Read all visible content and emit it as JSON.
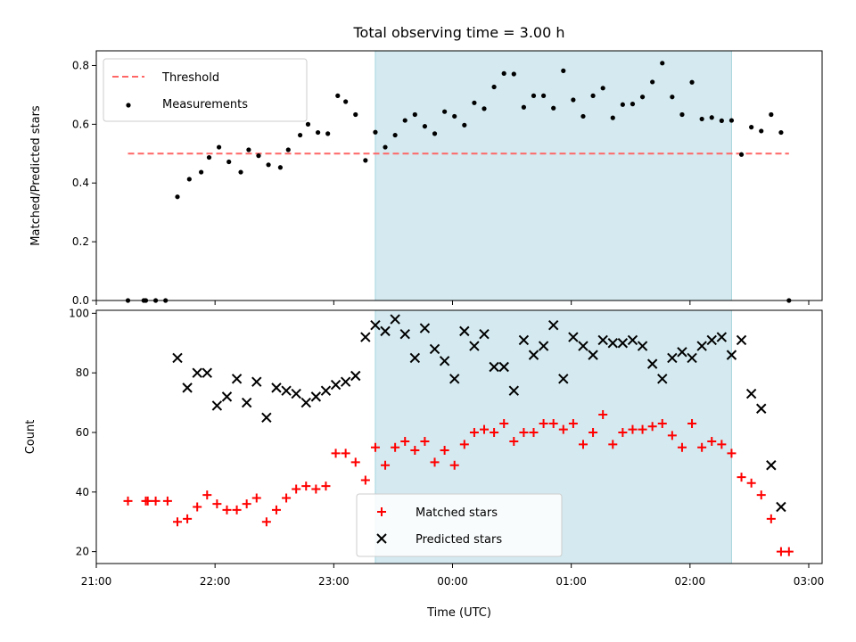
{
  "chart_data": {
    "title": "Total observing time = 3.00 h",
    "xlabel": "Time (UTC)",
    "x_ticks": [
      "21:00",
      "22:00",
      "23:00",
      "00:00",
      "01:00",
      "02:00",
      "03:00"
    ],
    "observing_window": {
      "start": "23:21",
      "end": "02:21",
      "color": "#d4eaf0"
    },
    "panels": [
      {
        "type": "scatter",
        "ylabel": "Matched/Predicted stars",
        "ylim": [
          0,
          0.85
        ],
        "yticks": [
          "0.0",
          "0.2",
          "0.4",
          "0.6",
          "0.8"
        ],
        "legend_position": "upper-left",
        "threshold": {
          "name": "Threshold",
          "value": 0.5,
          "x_start": "21:16",
          "x_end": "02:50",
          "color": "#ff6666",
          "style": "dashed"
        },
        "series": [
          {
            "name": "Measurements",
            "marker": "dot",
            "color": "#000000",
            "points": [
              [
                "21:16",
                0.0
              ],
              [
                "21:24",
                0.0
              ],
              [
                "21:25",
                0.0
              ],
              [
                "21:30",
                0.0
              ],
              [
                "21:35",
                0.0
              ],
              [
                "21:41",
                0.353
              ],
              [
                "21:47",
                0.413
              ],
              [
                "21:53",
                0.437
              ],
              [
                "21:57",
                0.487
              ],
              [
                "22:02",
                0.522
              ],
              [
                "22:07",
                0.472
              ],
              [
                "22:13",
                0.437
              ],
              [
                "22:17",
                0.513
              ],
              [
                "22:22",
                0.493
              ],
              [
                "22:27",
                0.462
              ],
              [
                "22:33",
                0.453
              ],
              [
                "22:37",
                0.513
              ],
              [
                "22:43",
                0.563
              ],
              [
                "22:47",
                0.6
              ],
              [
                "22:52",
                0.572
              ],
              [
                "22:57",
                0.568
              ],
              [
                "23:02",
                0.697
              ],
              [
                "23:06",
                0.677
              ],
              [
                "23:11",
                0.633
              ],
              [
                "23:16",
                0.477
              ],
              [
                "23:21",
                0.573
              ],
              [
                "23:26",
                0.522
              ],
              [
                "23:31",
                0.563
              ],
              [
                "23:36",
                0.613
              ],
              [
                "23:41",
                0.633
              ],
              [
                "23:46",
                0.593
              ],
              [
                "23:51",
                0.568
              ],
              [
                "23:56",
                0.643
              ],
              [
                "00:01",
                0.627
              ],
              [
                "00:06",
                0.597
              ],
              [
                "00:11",
                0.673
              ],
              [
                "00:16",
                0.653
              ],
              [
                "00:21",
                0.727
              ],
              [
                "00:26",
                0.773
              ],
              [
                "00:31",
                0.771
              ],
              [
                "00:36",
                0.658
              ],
              [
                "00:41",
                0.697
              ],
              [
                "00:46",
                0.697
              ],
              [
                "00:51",
                0.655
              ],
              [
                "00:56",
                0.782
              ],
              [
                "01:01",
                0.683
              ],
              [
                "01:06",
                0.627
              ],
              [
                "01:11",
                0.697
              ],
              [
                "01:16",
                0.723
              ],
              [
                "01:21",
                0.622
              ],
              [
                "01:26",
                0.667
              ],
              [
                "01:31",
                0.669
              ],
              [
                "01:36",
                0.693
              ],
              [
                "01:41",
                0.744
              ],
              [
                "01:46",
                0.808
              ],
              [
                "01:51",
                0.693
              ],
              [
                "01:56",
                0.633
              ],
              [
                "02:01",
                0.743
              ],
              [
                "02:06",
                0.618
              ],
              [
                "02:11",
                0.623
              ],
              [
                "02:16",
                0.612
              ],
              [
                "02:21",
                0.613
              ],
              [
                "02:26",
                0.497
              ],
              [
                "02:31",
                0.59
              ],
              [
                "02:36",
                0.577
              ],
              [
                "02:41",
                0.633
              ],
              [
                "02:46",
                0.572
              ],
              [
                "02:50",
                0.0
              ]
            ]
          }
        ]
      },
      {
        "type": "scatter",
        "ylabel": "Count",
        "ylim": [
          16,
          101
        ],
        "yticks": [
          "20",
          "40",
          "60",
          "80",
          "100"
        ],
        "legend_position": "lower-center",
        "series": [
          {
            "name": "Matched stars",
            "marker": "plus",
            "color": "#ff0000",
            "points": [
              [
                "21:16",
                37
              ],
              [
                "21:25",
                37
              ],
              [
                "21:26",
                37
              ],
              [
                "21:30",
                37
              ],
              [
                "21:36",
                37
              ],
              [
                "21:41",
                30
              ],
              [
                "21:46",
                31
              ],
              [
                "21:51",
                35
              ],
              [
                "21:56",
                39
              ],
              [
                "22:01",
                36
              ],
              [
                "22:06",
                34
              ],
              [
                "22:11",
                34
              ],
              [
                "22:16",
                36
              ],
              [
                "22:21",
                38
              ],
              [
                "22:26",
                30
              ],
              [
                "22:31",
                34
              ],
              [
                "22:36",
                38
              ],
              [
                "22:41",
                41
              ],
              [
                "22:46",
                42
              ],
              [
                "22:51",
                41
              ],
              [
                "22:56",
                42
              ],
              [
                "23:01",
                53
              ],
              [
                "23:06",
                53
              ],
              [
                "23:11",
                50
              ],
              [
                "23:16",
                44
              ],
              [
                "23:21",
                55
              ],
              [
                "23:26",
                49
              ],
              [
                "23:31",
                55
              ],
              [
                "23:36",
                57
              ],
              [
                "23:41",
                54
              ],
              [
                "23:46",
                57
              ],
              [
                "23:51",
                50
              ],
              [
                "23:56",
                54
              ],
              [
                "00:01",
                49
              ],
              [
                "00:06",
                56
              ],
              [
                "00:11",
                60
              ],
              [
                "00:16",
                61
              ],
              [
                "00:21",
                60
              ],
              [
                "00:26",
                63
              ],
              [
                "00:31",
                57
              ],
              [
                "00:36",
                60
              ],
              [
                "00:41",
                60
              ],
              [
                "00:46",
                63
              ],
              [
                "00:51",
                63
              ],
              [
                "00:56",
                61
              ],
              [
                "01:01",
                63
              ],
              [
                "01:06",
                56
              ],
              [
                "01:11",
                60
              ],
              [
                "01:16",
                66
              ],
              [
                "01:21",
                56
              ],
              [
                "01:26",
                60
              ],
              [
                "01:31",
                61
              ],
              [
                "01:36",
                61
              ],
              [
                "01:41",
                62
              ],
              [
                "01:46",
                63
              ],
              [
                "01:51",
                59
              ],
              [
                "01:56",
                55
              ],
              [
                "02:01",
                63
              ],
              [
                "02:06",
                55
              ],
              [
                "02:11",
                57
              ],
              [
                "02:16",
                56
              ],
              [
                "02:21",
                53
              ],
              [
                "02:26",
                45
              ],
              [
                "02:31",
                43
              ],
              [
                "02:36",
                39
              ],
              [
                "02:41",
                31
              ],
              [
                "02:46",
                20
              ],
              [
                "02:50",
                20
              ]
            ]
          },
          {
            "name": "Predicted stars",
            "marker": "x",
            "color": "#000000",
            "points": [
              [
                "21:41",
                85
              ],
              [
                "21:46",
                75
              ],
              [
                "21:51",
                80
              ],
              [
                "21:56",
                80
              ],
              [
                "22:01",
                69
              ],
              [
                "22:06",
                72
              ],
              [
                "22:11",
                78
              ],
              [
                "22:16",
                70
              ],
              [
                "22:21",
                77
              ],
              [
                "22:26",
                65
              ],
              [
                "22:31",
                75
              ],
              [
                "22:36",
                74
              ],
              [
                "22:41",
                73
              ],
              [
                "22:46",
                70
              ],
              [
                "22:51",
                72
              ],
              [
                "22:56",
                74
              ],
              [
                "23:01",
                76
              ],
              [
                "23:06",
                77
              ],
              [
                "23:11",
                79
              ],
              [
                "23:16",
                92
              ],
              [
                "23:21",
                96
              ],
              [
                "23:26",
                94
              ],
              [
                "23:31",
                98
              ],
              [
                "23:36",
                93
              ],
              [
                "23:41",
                85
              ],
              [
                "23:46",
                95
              ],
              [
                "23:51",
                88
              ],
              [
                "23:56",
                84
              ],
              [
                "00:01",
                78
              ],
              [
                "00:06",
                94
              ],
              [
                "00:11",
                89
              ],
              [
                "00:16",
                93
              ],
              [
                "00:21",
                82
              ],
              [
                "00:26",
                82
              ],
              [
                "00:31",
                74
              ],
              [
                "00:36",
                91
              ],
              [
                "00:41",
                86
              ],
              [
                "00:46",
                89
              ],
              [
                "00:51",
                96
              ],
              [
                "00:56",
                78
              ],
              [
                "01:01",
                92
              ],
              [
                "01:06",
                89
              ],
              [
                "01:11",
                86
              ],
              [
                "01:16",
                91
              ],
              [
                "01:21",
                90
              ],
              [
                "01:26",
                90
              ],
              [
                "01:31",
                91
              ],
              [
                "01:36",
                89
              ],
              [
                "01:41",
                83
              ],
              [
                "01:46",
                78
              ],
              [
                "01:51",
                85
              ],
              [
                "01:56",
                87
              ],
              [
                "02:01",
                85
              ],
              [
                "02:06",
                89
              ],
              [
                "02:11",
                91
              ],
              [
                "02:16",
                92
              ],
              [
                "02:21",
                86
              ],
              [
                "02:26",
                91
              ],
              [
                "02:31",
                73
              ],
              [
                "02:36",
                68
              ],
              [
                "02:41",
                49
              ],
              [
                "02:46",
                35
              ]
            ]
          }
        ]
      }
    ]
  }
}
